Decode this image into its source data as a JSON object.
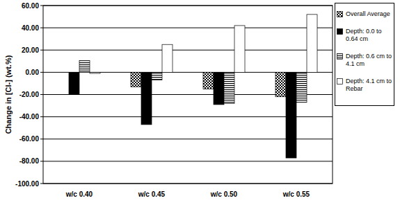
{
  "chart_data": {
    "type": "bar",
    "y_label": "Change in [Cl-] (wt.%)",
    "categories": [
      "w/c 0.40",
      "w/c 0.45",
      "w/c 0.50",
      "w/c 0.55"
    ],
    "series": [
      {
        "name": "Overall Average",
        "color": "#808080",
        "values": [
          0,
          -13,
          -15,
          -22
        ]
      },
      {
        "name": "Depth: 0.0 to 0.64 cm",
        "color": "#000000",
        "values": [
          -20,
          -47,
          -29,
          -77
        ]
      },
      {
        "name": "Depth: 0.6 cm to 4.1 cm",
        "color": "#555555",
        "values": [
          10.5,
          -7,
          -28,
          -27
        ]
      },
      {
        "name": "Depth: 4.1 cm to Rebar",
        "color": "#ffffff",
        "values": [
          -1,
          25,
          42,
          52
        ]
      }
    ],
    "ylim": [
      -100,
      60
    ],
    "yticks": [
      {
        "value": -100,
        "label": "-100.00"
      },
      {
        "value": -80,
        "label": "-80.00"
      },
      {
        "value": -60,
        "label": "-60.00"
      },
      {
        "value": -40,
        "label": "-40.00"
      },
      {
        "value": -20,
        "label": "-20.00"
      },
      {
        "value": 0,
        "label": "0.00"
      },
      {
        "value": 20,
        "label": "20.00"
      },
      {
        "value": 40,
        "label": "40.00"
      },
      {
        "value": 60,
        "label": "60.00"
      }
    ],
    "grid": true,
    "legend": "right"
  }
}
